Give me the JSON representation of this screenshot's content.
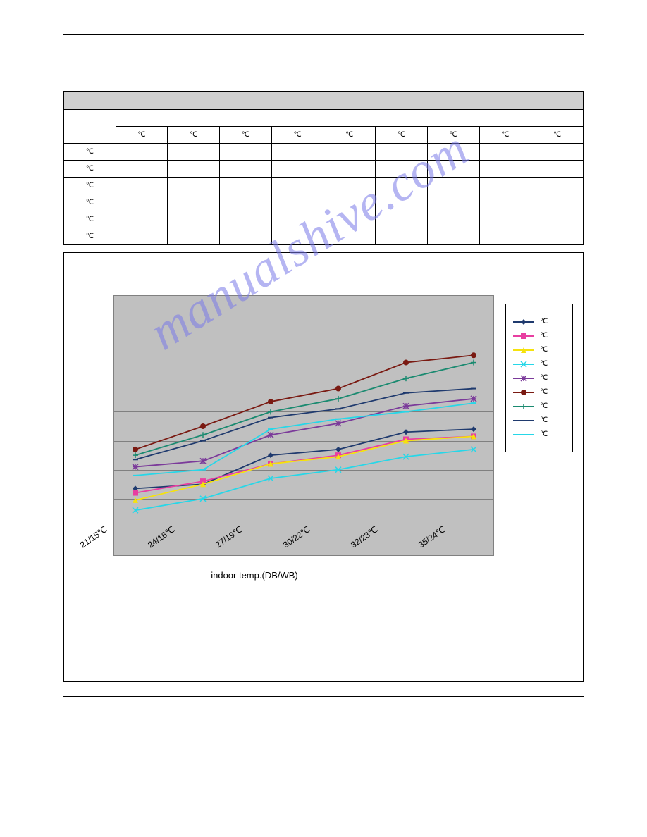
{
  "watermark_text": "manualshive.com",
  "table": {
    "col_headers": [
      "℃",
      "℃",
      "℃",
      "℃",
      "℃",
      "℃",
      "℃",
      "℃",
      "℃"
    ],
    "row_labels": [
      "℃",
      "℃",
      "℃",
      "℃",
      "℃",
      "℃"
    ]
  },
  "chart": {
    "type": "line",
    "background_color": "#c0c0c0",
    "grid_color": "#808080",
    "plot_border_color": "#808080",
    "n_gridlines": 9,
    "x_categories": [
      "21/15℃",
      "24/16℃",
      "27/19℃",
      "30/22℃",
      "32/23℃",
      "35/24℃"
    ],
    "x_axis_title": "indoor temp.(DB/WB)",
    "x_label_fontsize": 12,
    "x_title_fontsize": 13,
    "y_range_display": [
      0,
      9
    ],
    "series": [
      {
        "label": "℃",
        "color": "#1f3a6e",
        "marker": "diamond",
        "values": [
          2.35,
          2.5,
          3.5,
          3.7,
          4.3,
          4.4
        ]
      },
      {
        "label": "℃",
        "color": "#e83ea1",
        "marker": "square",
        "values": [
          2.2,
          2.6,
          3.2,
          3.5,
          4.05,
          4.15
        ]
      },
      {
        "label": "℃",
        "color": "#f5e20d",
        "marker": "triangle",
        "values": [
          1.95,
          2.5,
          3.2,
          3.45,
          4.0,
          4.15
        ]
      },
      {
        "label": "℃",
        "color": "#26d7e8",
        "marker": "x",
        "values": [
          1.6,
          2.0,
          2.7,
          3.0,
          3.45,
          3.7
        ]
      },
      {
        "label": "℃",
        "color": "#7b3a9a",
        "marker": "asterisk",
        "values": [
          3.1,
          3.3,
          4.2,
          4.6,
          5.2,
          5.45
        ]
      },
      {
        "label": "℃",
        "color": "#7a1a12",
        "marker": "circle",
        "values": [
          3.7,
          4.5,
          5.35,
          5.8,
          6.7,
          6.95
        ]
      },
      {
        "label": "℃",
        "color": "#1a8a70",
        "marker": "plus",
        "values": [
          3.5,
          4.2,
          5.0,
          5.45,
          6.15,
          6.7
        ]
      },
      {
        "label": "℃",
        "color": "#1f3a6e",
        "marker": "dash",
        "values": [
          3.35,
          4.0,
          4.8,
          5.1,
          5.65,
          5.8
        ]
      },
      {
        "label": "℃",
        "color": "#26d7e8",
        "marker": "dash",
        "values": [
          2.8,
          3.0,
          4.4,
          4.75,
          5.0,
          5.3
        ]
      }
    ],
    "legend": {
      "border_color": "#000000",
      "bg_color": "#ffffff",
      "position": "right"
    }
  }
}
